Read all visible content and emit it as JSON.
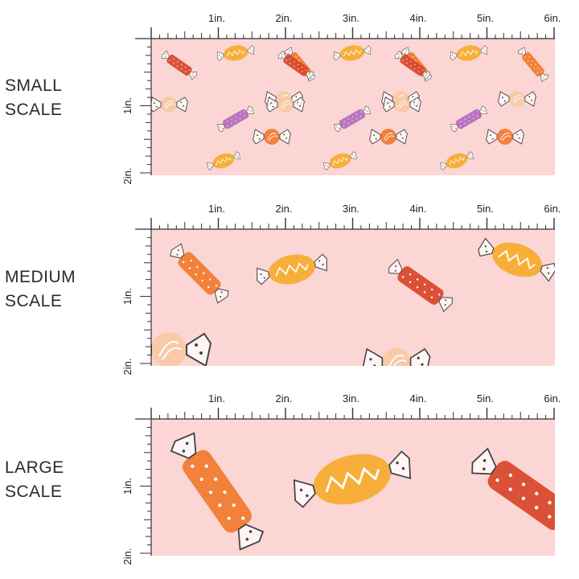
{
  "scales": [
    {
      "label_line1": "SMALL",
      "label_line2": "SCALE"
    },
    {
      "label_line1": "MEDIUM",
      "label_line2": "SCALE"
    },
    {
      "label_line1": "LARGE",
      "label_line2": "SCALE"
    }
  ],
  "ruler": {
    "horizontal": [
      "1in.",
      "2in.",
      "3in.",
      "4in.",
      "5in.",
      "6in."
    ],
    "vertical": [
      "1in.",
      "2in."
    ]
  },
  "colors": {
    "fabric_background": "#fbd6d4",
    "candy_orange": "#f07a2e",
    "candy_red": "#d8452a",
    "candy_yellow": "#f6ab2c",
    "candy_purple": "#b46bbd",
    "candy_peach": "#f7c9a4"
  }
}
